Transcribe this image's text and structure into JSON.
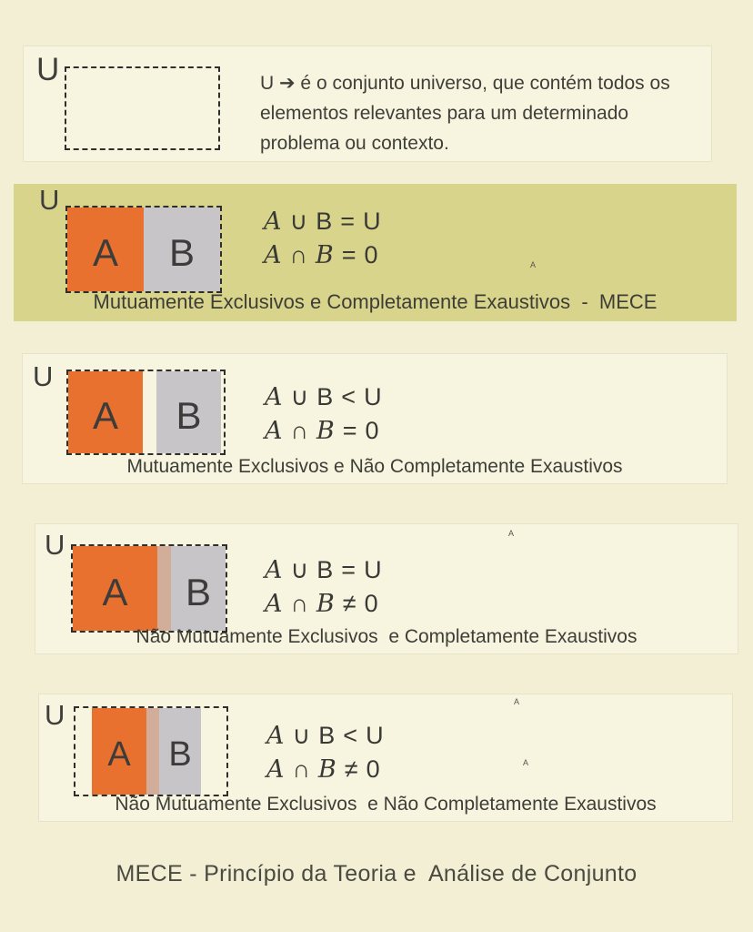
{
  "colors": {
    "page_bg": "#f2efd4",
    "panel_bg": "#f7f4df",
    "panel_border": "#e6e3c9",
    "highlight_bg": "#d8d48b",
    "set_a": "#e9712f",
    "set_b": "#c7c5c8",
    "overlap": "#d2ad9a",
    "ink": "#3e3e3a"
  },
  "footer_title": "MECE - Princípio da Teoria e  Análise de Conjunto",
  "panels": [
    {
      "u_label": "U",
      "description": "U ➔ é o conjunto universo, que contém todos os elementos relevantes para um determinado problema ou contexto."
    },
    {
      "u_label": "U",
      "set_a": "A",
      "set_b": "B",
      "formula_line1": {
        "var_a": "A",
        "op": "∪",
        "var_b": "B",
        "rel": "=",
        "rhs": "U"
      },
      "formula_line2": {
        "var_a": "A",
        "op": "∩",
        "var_b": "B",
        "rel": "=",
        "rhs": "0"
      },
      "caption": "Mutuamente Exclusivos e Completamente Exaustivos  -  MECE",
      "stray_mark": "A"
    },
    {
      "u_label": "U",
      "set_a": "A",
      "set_b": "B",
      "formula_line1": {
        "var_a": "A",
        "op": "∪",
        "var_b": "B",
        "rel": "<",
        "rhs": "U"
      },
      "formula_line2": {
        "var_a": "A",
        "op": "∩",
        "var_b": "B",
        "rel": "=",
        "rhs": "0"
      },
      "caption": "Mutuamente Exclusivos e Não Completamente Exaustivos"
    },
    {
      "u_label": "U",
      "set_a": "A",
      "set_b": "B",
      "formula_line1": {
        "var_a": "A",
        "op": "∪",
        "var_b": "B",
        "rel": "=",
        "rhs": "U"
      },
      "formula_line2": {
        "var_a": "A",
        "op": "∩",
        "var_b": "B",
        "rel": "≠",
        "rhs": "0"
      },
      "caption": "Não Mutuamente Exclusivos  e Completamente Exaustivos",
      "stray_mark": "A"
    },
    {
      "u_label": "U",
      "set_a": "A",
      "set_b": "B",
      "formula_line1": {
        "var_a": "A",
        "op": "∪",
        "var_b": "B",
        "rel": "<",
        "rhs": "U"
      },
      "formula_line2": {
        "var_a": "A",
        "op": "∩",
        "var_b": "B",
        "rel": "≠",
        "rhs": "0"
      },
      "caption": "Não Mutuamente Exclusivos  e Não Completamente Exaustivos",
      "stray_mark": "A",
      "stray_mark2": "A"
    }
  ]
}
